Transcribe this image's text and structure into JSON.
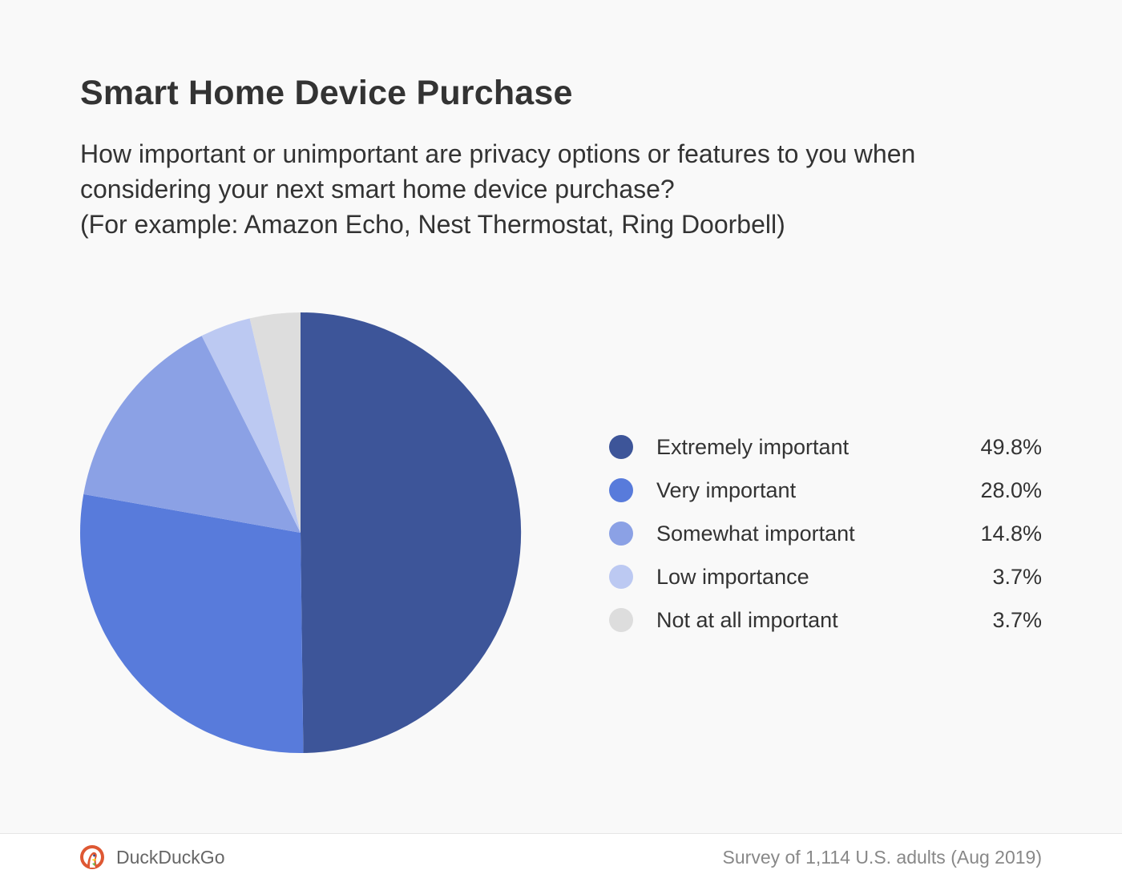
{
  "title": "Smart Home Device Purchase",
  "subtitle": {
    "line1": "How important or unimportant are privacy options or features to you when",
    "line2": "considering your next smart home device purchase?",
    "line3": "(For example: Amazon Echo, Nest Thermostat, Ring Doorbell)"
  },
  "chart_data": {
    "type": "pie",
    "categories": [
      "Extremely important",
      "Very important",
      "Somewhat important",
      "Low importance",
      "Not at all important"
    ],
    "values": [
      49.8,
      28.0,
      14.8,
      3.7,
      3.7
    ],
    "value_labels": [
      "49.8%",
      "28.0%",
      "14.8%",
      "3.7%",
      "3.7%"
    ],
    "colors": [
      "#3d5599",
      "#587bdb",
      "#8ba1e5",
      "#bcc9f2",
      "#dddddd"
    ],
    "legend_placement": "right"
  },
  "footer": {
    "brand": "DuckDuckGo",
    "logo_icon": "duckduckgo-logo-icon",
    "source": "Survey of 1,114 U.S. adults (Aug 2019)"
  }
}
